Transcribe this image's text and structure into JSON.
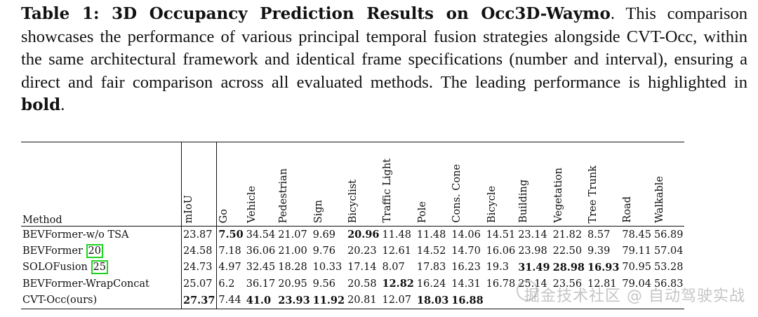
{
  "caption": {
    "label": "Table 1: 3D Occupancy Prediction Results on Occ3D-Waymo",
    "text_before_bold": ". This comparison showcases the performance of various principal temporal fusion strategies alongside CVT-Occ, within the same architectural framework and identical frame specifications (number and interval), ensuring a direct and fair comparison across all evaluated methods. The leading performance is highlighted in ",
    "bold_word": "bold",
    "text_after_bold": "."
  },
  "table": {
    "method_header": "Method",
    "columns": [
      "mIoU",
      "Go",
      "Vehicle",
      "Pedestrian",
      "Sign",
      "Bicyclist",
      "Traffic Light",
      "Pole",
      "Cons. Cone",
      "Bicycle",
      "Building",
      "Vegetation",
      "Tree Trunk",
      "Road",
      "Walkable"
    ],
    "rows": [
      {
        "method": "BEVFormer-w/o TSA",
        "cite": "",
        "values": [
          "23.87",
          "7.50",
          "34.54",
          "21.07",
          "9.69",
          "20.96",
          "11.48",
          "11.48",
          "14.06",
          "14.51",
          "23.14",
          "21.82",
          "8.57",
          "78.45",
          "56.89"
        ],
        "bold": [
          1,
          5
        ]
      },
      {
        "method": "BEVFormer ",
        "cite": "20",
        "values": [
          "24.58",
          "7.18",
          "36.06",
          "21.00",
          "9.76",
          "20.23",
          "12.61",
          "14.52",
          "14.70",
          "16.06",
          "23.98",
          "22.50",
          "9.39",
          "79.11",
          "57.04"
        ],
        "bold": []
      },
      {
        "method": "SOLOFusion ",
        "cite": "25",
        "values": [
          "24.73",
          "4.97",
          "32.45",
          "18.28",
          "10.33",
          "17.14",
          "8.07",
          "17.83",
          "16.23",
          "19.3",
          "31.49",
          "28.98",
          "16.93",
          "70.95",
          "53.28"
        ],
        "bold": [
          10,
          11,
          12
        ]
      },
      {
        "method": "BEVFormer-WrapConcat",
        "cite": "",
        "values": [
          "25.07",
          "6.2",
          "36.17",
          "20.95",
          "9.56",
          "20.58",
          "12.82",
          "16.24",
          "14.31",
          "16.78",
          "25.14",
          "23.56",
          "12.81",
          "79.04",
          "56.83"
        ],
        "bold": [
          6
        ]
      },
      {
        "method": "CVT-Occ(ours)",
        "cite": "",
        "values": [
          "27.37",
          "7.44",
          "41.0",
          "23.93",
          "11.92",
          "20.81",
          "12.07",
          "18.03",
          "16.88",
          "",
          "",
          "",
          "",
          "",
          ""
        ],
        "bold": [
          0,
          2,
          3,
          4,
          7,
          8
        ]
      }
    ]
  },
  "watermark": "掘金技术社区 @ 自动驾驶实战"
}
